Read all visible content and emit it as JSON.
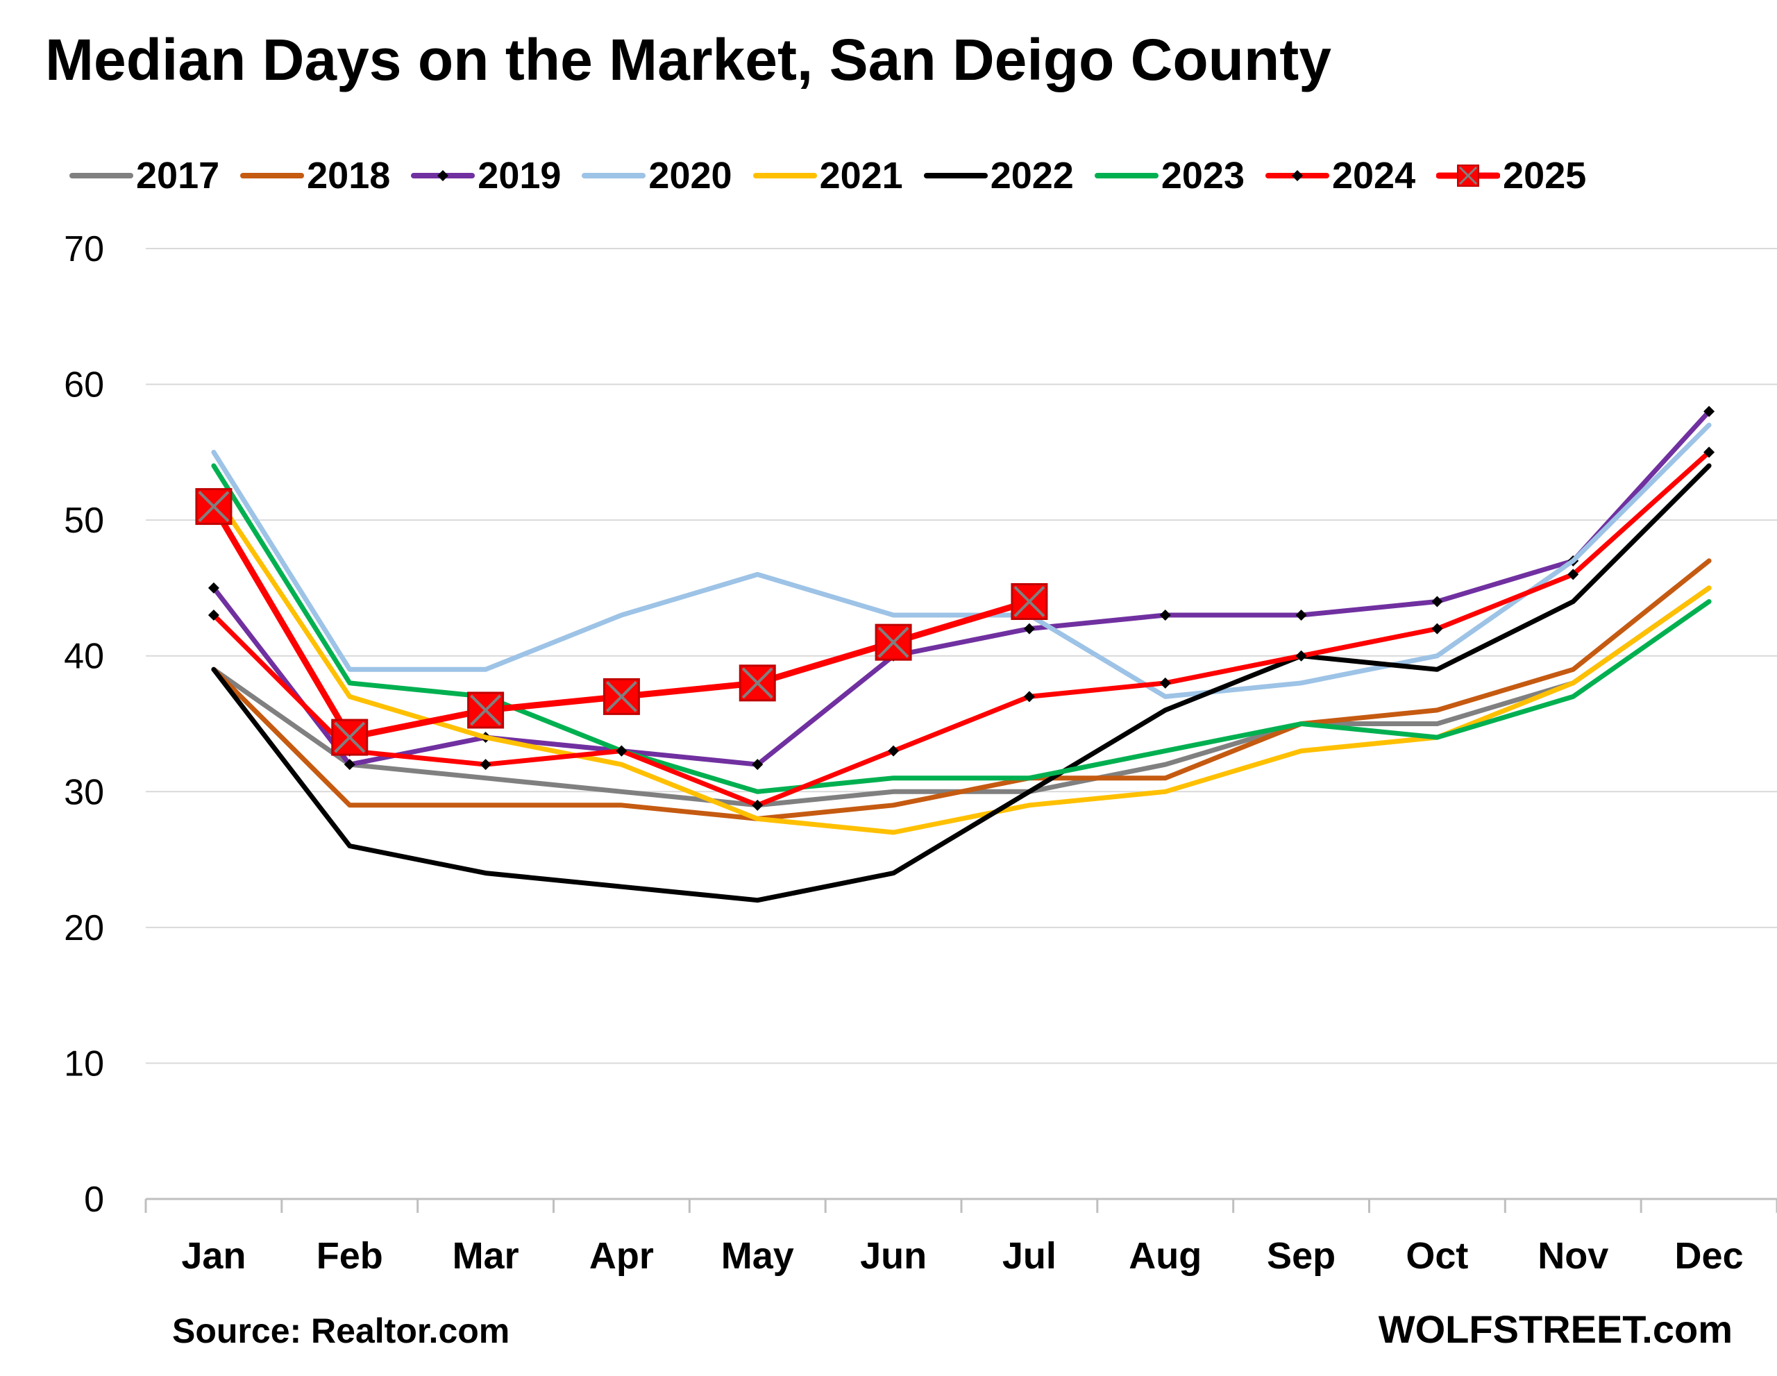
{
  "header": {
    "title": "Median Days on the Market, San Deigo County"
  },
  "footer": {
    "source": "Source: Realtor.com",
    "brand": "WOLFSTREET.com"
  },
  "chart_data": {
    "type": "line",
    "title": "Median Days on the Market, San Deigo County",
    "xlabel": "",
    "ylabel": "",
    "ylim": [
      0,
      70
    ],
    "yticks": [
      0,
      10,
      20,
      30,
      40,
      50,
      60,
      70
    ],
    "grid": true,
    "legend": "top",
    "categories": [
      "Jan",
      "Feb",
      "Mar",
      "Apr",
      "May",
      "Jun",
      "Jul",
      "Aug",
      "Sep",
      "Oct",
      "Nov",
      "Dec"
    ],
    "series": [
      {
        "name": "2017",
        "color": "#808080",
        "marker": "none",
        "values": [
          39,
          32,
          31,
          30,
          29,
          30,
          30,
          32,
          35,
          35,
          38,
          45
        ]
      },
      {
        "name": "2018",
        "color": "#C55A11",
        "marker": "none",
        "values": [
          39,
          29,
          29,
          29,
          28,
          29,
          31,
          31,
          35,
          36,
          39,
          47
        ]
      },
      {
        "name": "2019",
        "color": "#7030A0",
        "marker": "diamond",
        "values": [
          45,
          32,
          34,
          33,
          32,
          40,
          42,
          43,
          43,
          44,
          47,
          58
        ]
      },
      {
        "name": "2020",
        "color": "#9DC3E6",
        "marker": "none",
        "values": [
          55,
          39,
          39,
          43,
          46,
          43,
          43,
          37,
          38,
          40,
          47,
          57
        ]
      },
      {
        "name": "2021",
        "color": "#FFC000",
        "marker": "none",
        "values": [
          52,
          37,
          34,
          32,
          28,
          27,
          29,
          30,
          33,
          34,
          38,
          45
        ]
      },
      {
        "name": "2022",
        "color": "#000000",
        "marker": "none",
        "values": [
          39,
          26,
          24,
          23,
          22,
          24,
          30,
          36,
          40,
          39,
          44,
          54
        ]
      },
      {
        "name": "2023",
        "color": "#00B050",
        "marker": "none",
        "values": [
          54,
          38,
          37,
          33,
          30,
          31,
          31,
          33,
          35,
          34,
          37,
          44
        ]
      },
      {
        "name": "2024",
        "color": "#FF0000",
        "marker": "diamond",
        "values": [
          43,
          33,
          32,
          33,
          29,
          33,
          37,
          38,
          40,
          42,
          46,
          55
        ]
      },
      {
        "name": "2025",
        "color": "#FF0000",
        "marker": "square-x",
        "values": [
          51,
          34,
          36,
          37,
          38,
          41,
          44,
          null,
          null,
          null,
          null,
          null
        ]
      }
    ]
  }
}
